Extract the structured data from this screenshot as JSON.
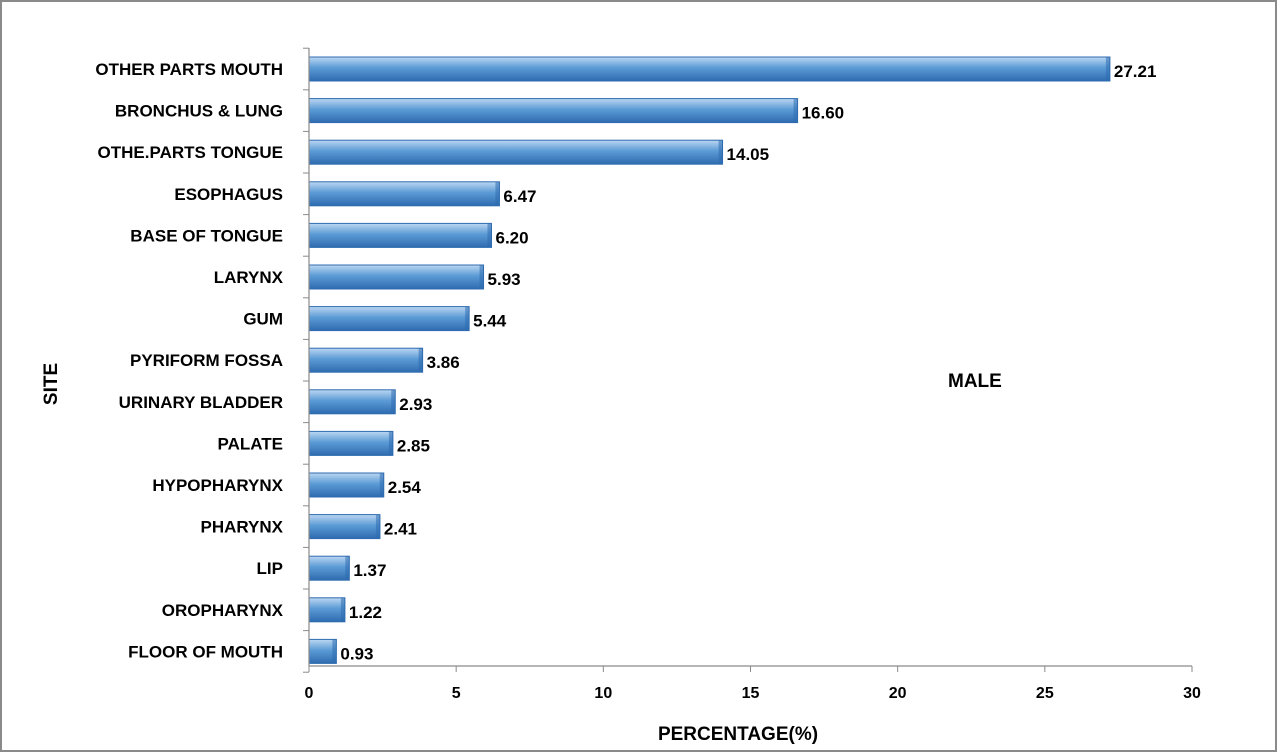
{
  "chart_data": {
    "type": "bar",
    "orientation": "horizontal",
    "title": "",
    "xlabel": "PERCENTAGE(%)",
    "ylabel": "SITE",
    "annotation": "MALE",
    "categories": [
      "OTHER PARTS MOUTH",
      "BRONCHUS & LUNG",
      "OTHE.PARTS TONGUE",
      "ESOPHAGUS",
      "BASE OF TONGUE",
      "LARYNX",
      "GUM",
      "PYRIFORM FOSSA",
      "URINARY BLADDER",
      "PALATE",
      "HYPOPHARYNX",
      "PHARYNX",
      "LIP",
      "OROPHARYNX",
      "FLOOR OF MOUTH"
    ],
    "values": [
      27.21,
      16.6,
      14.05,
      6.47,
      6.2,
      5.93,
      5.44,
      3.86,
      2.93,
      2.85,
      2.54,
      2.41,
      1.37,
      1.22,
      0.93
    ],
    "value_labels": [
      "27.21",
      "16.60",
      "14.05",
      "6.47",
      "6.20",
      "5.93",
      "5.44",
      "3.86",
      "2.93",
      "2.85",
      "2.54",
      "2.41",
      "1.37",
      "1.22",
      "0.93"
    ],
    "xlim": [
      0,
      30
    ],
    "xticks": [
      0,
      5,
      10,
      15,
      20,
      25,
      30
    ],
    "grid": false,
    "legend": "none",
    "bar_color": "#5b9bd5",
    "bar_color_light": "#bcd7f2",
    "bar_color_dark": "#2e6bb0"
  }
}
